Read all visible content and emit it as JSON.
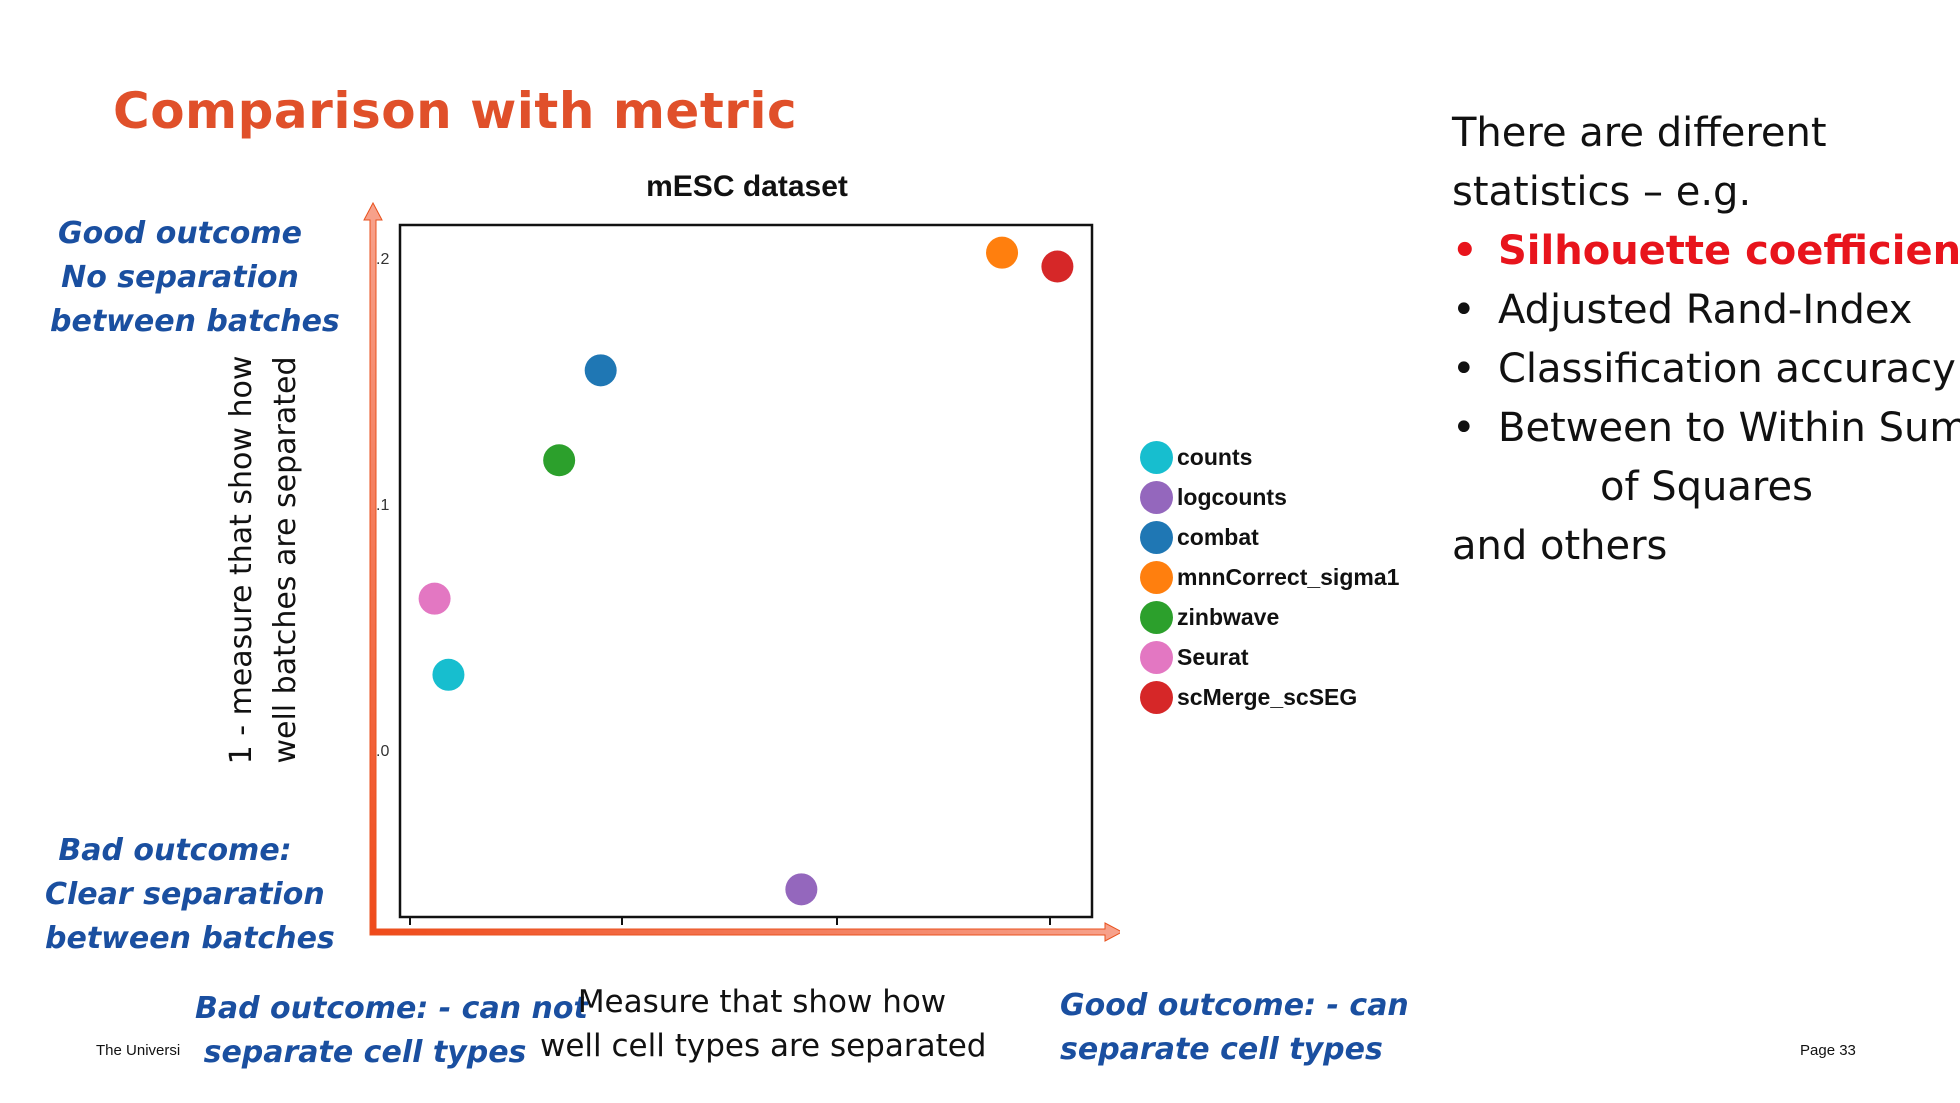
{
  "slide": {
    "title": "Comparison with metric",
    "footer_left": "The Universi",
    "page_label": "Page 33"
  },
  "annotations": {
    "top_left": [
      "Good outcome",
      "No separation",
      "between batches"
    ],
    "bottom_left": [
      "Bad outcome:",
      "Clear separation",
      "between batches"
    ],
    "x_bad": [
      "Bad outcome: - can not",
      "separate cell types"
    ],
    "x_good": [
      "Good outcome: - can",
      "separate cell types"
    ],
    "x_desc": [
      "Measure that show how",
      "well cell types are separated"
    ],
    "y_desc": [
      "1 - measure that show how",
      "well batches are separated"
    ]
  },
  "right_panel": {
    "intro": [
      "There are different",
      "statistics – e.g."
    ],
    "bullets": [
      {
        "text": "Silhouette coefficients",
        "highlight": true
      },
      {
        "text": "Adjusted Rand-Index",
        "highlight": false
      },
      {
        "text": "Classification accuracy",
        "highlight": false
      },
      {
        "text": "Between to Within Sum",
        "highlight": false
      }
    ],
    "continuation": "of Squares",
    "outro": "and others",
    "highlight_color": "#e8141c"
  },
  "chart_data": {
    "type": "scatter",
    "title": "mESC dataset",
    "xlabel": "",
    "ylabel": "",
    "xlim": [
      0,
      1
    ],
    "ylim": [
      0,
      1
    ],
    "grid": false,
    "legend_position": "right",
    "ytick_labels": [
      ".2",
      ".1",
      ".0"
    ],
    "series": [
      {
        "name": "counts",
        "color": "#17becf",
        "x": 0.07,
        "y": 0.35
      },
      {
        "name": "logcounts",
        "color": "#9467bd",
        "x": 0.58,
        "y": 0.04
      },
      {
        "name": "combat",
        "color": "#1f77b4",
        "x": 0.29,
        "y": 0.79
      },
      {
        "name": "mnnCorrect_sigma1",
        "color": "#ff7f0e",
        "x": 0.87,
        "y": 0.96
      },
      {
        "name": "zinbwave",
        "color": "#2ca02c",
        "x": 0.23,
        "y": 0.66
      },
      {
        "name": "Seurat",
        "color": "#e377c2",
        "x": 0.05,
        "y": 0.46
      },
      {
        "name": "scMerge_scSEG",
        "color": "#d62728",
        "x": 0.95,
        "y": 0.94
      }
    ]
  },
  "colors": {
    "title": "#e0502a",
    "annotation": "#1a4fa0",
    "arrow": "#f25c2a"
  }
}
